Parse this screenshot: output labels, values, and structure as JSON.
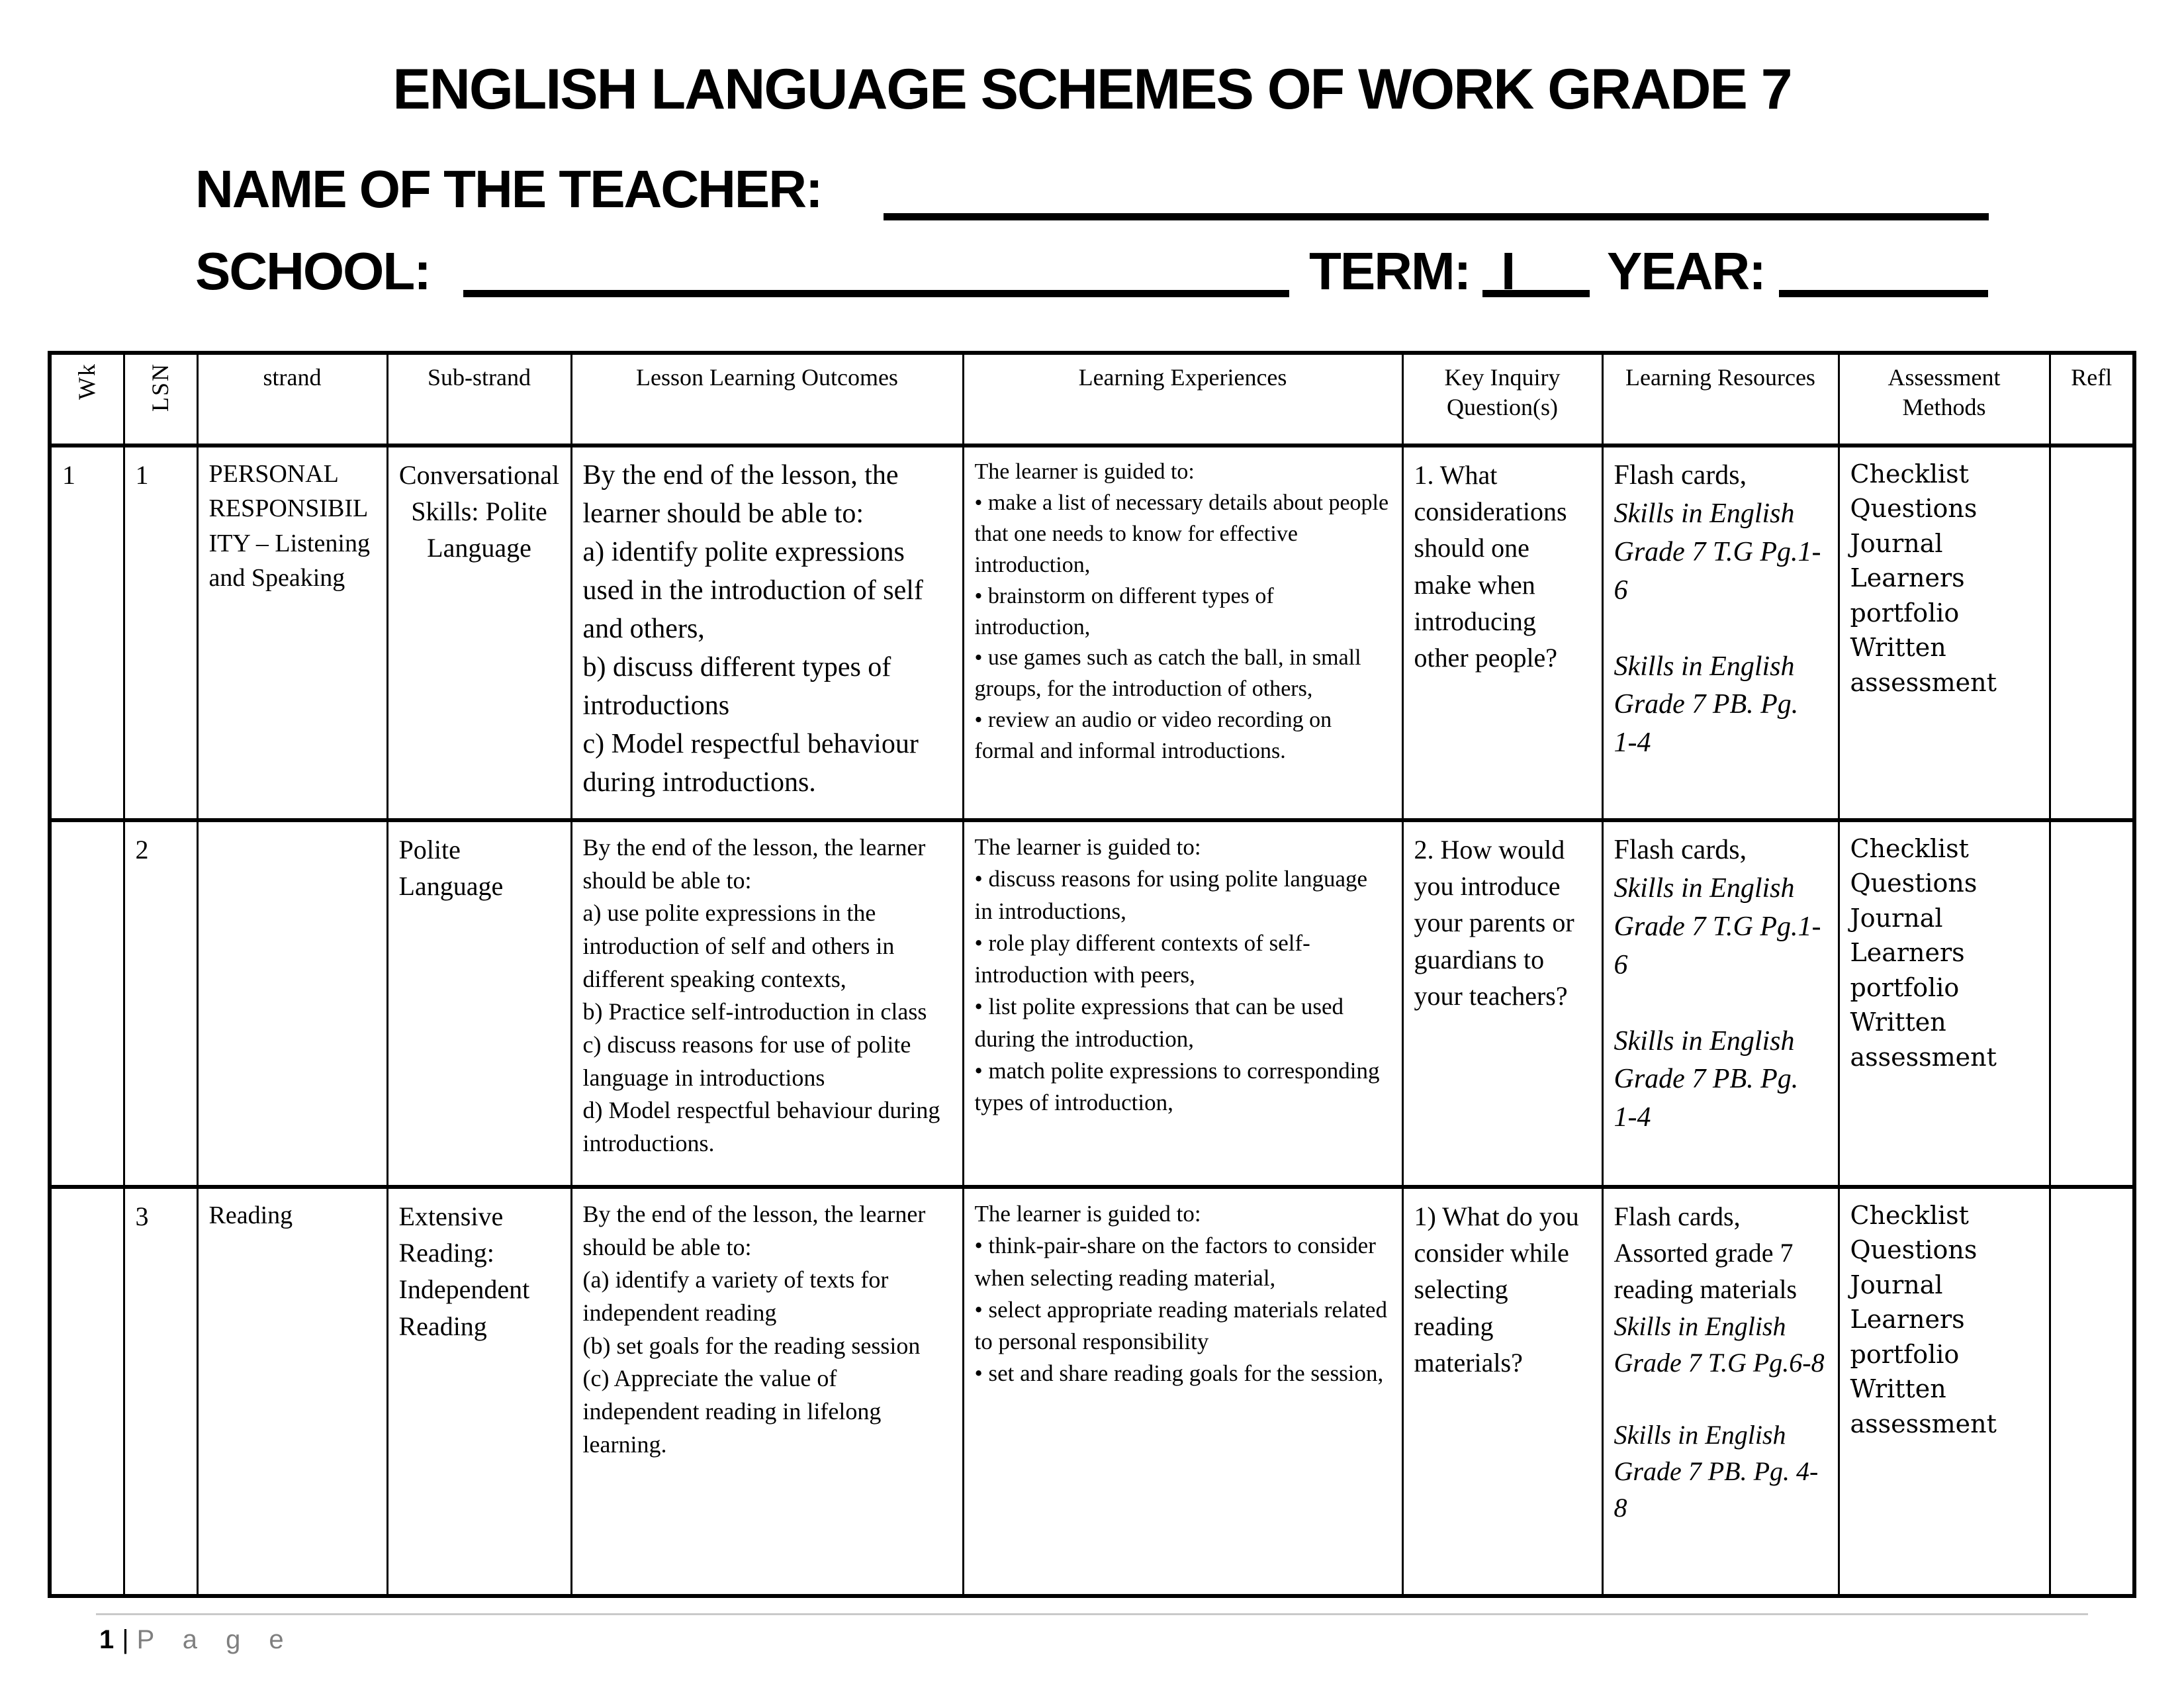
{
  "page": {
    "title": "ENGLISH LANGUAGE SCHEMES OF WORK GRADE 7",
    "teacher_label": "NAME OF THE TEACHER:",
    "school_label": "SCHOOL:",
    "term_label": "TERM:",
    "term_value": "I",
    "year_label": "YEAR:",
    "footer": {
      "page_number": "1",
      "separator": "|",
      "page_word": "P a g e"
    }
  },
  "table": {
    "headers": [
      "Wk",
      "LSN",
      "strand",
      "Sub-strand",
      "Lesson Learning Outcomes",
      "Learning Experiences",
      "Key Inquiry Question(s)",
      "Learning Resources",
      "Assessment Methods",
      "Refl"
    ],
    "rows": [
      {
        "wk": "1",
        "lsn": "1",
        "strand": "PERSONAL RESPONSIBILITY – Listening and Speaking",
        "sub_strand": "Conversational Skills: Polite Language",
        "outcomes": [
          "By the end of the lesson, the learner should be able to:",
          "a) identify polite expressions used in the introduction of self and others,",
          "b) discuss different types of introductions",
          "c) Model respectful behaviour during introductions."
        ],
        "experiences": [
          "The learner is guided to:",
          "• make a list of necessary details about people that one needs to know for effective introduction,",
          "• brainstorm on different types of introduction,",
          "• use games such as catch the ball, in small groups, for the introduction of others,",
          "• review an audio or video recording on formal and informal introductions."
        ],
        "key_inquiry": "1. What considerations should one make when introducing other people?",
        "resources": [
          {
            "text": "Flash cards,",
            "italic": false
          },
          {
            "text": "Skills in English Grade 7 T.G Pg.1-6",
            "italic": true
          },
          {
            "text": "",
            "italic": false
          },
          {
            "text": "Skills in English Grade 7 PB. Pg. 1-4",
            "italic": true
          }
        ],
        "assessment": [
          "Checklist",
          "Questions",
          "Journal",
          "Learners portfolio",
          "Written assessment"
        ],
        "refl": ""
      },
      {
        "wk": "",
        "lsn": "2",
        "strand": "",
        "sub_strand": "Polite Language",
        "outcomes": [
          "By the end of the lesson, the learner should be able to:",
          "a) use polite expressions in the introduction of self and others in different speaking contexts,",
          "b) Practice self-introduction in class",
          "c) discuss reasons for use of polite language in introductions",
          "d) Model respectful behaviour during introductions."
        ],
        "experiences": [
          "The learner is guided to:",
          "• discuss reasons for using polite language in introductions,",
          "• role play different contexts of self-introduction with peers,",
          "• list polite expressions that can be used during the introduction,",
          "• match polite expressions to corresponding types of introduction,"
        ],
        "key_inquiry": "2. How would you introduce your parents or guardians to your teachers?",
        "resources": [
          {
            "text": "Flash cards,",
            "italic": false
          },
          {
            "text": "Skills in English Grade 7 T.G Pg.1-6",
            "italic": true
          },
          {
            "text": "",
            "italic": false
          },
          {
            "text": "Skills in English Grade 7 PB. Pg. 1-4",
            "italic": true
          }
        ],
        "assessment": [
          "Checklist",
          "Questions",
          "Journal",
          "Learners portfolio",
          "Written assessment"
        ],
        "refl": ""
      },
      {
        "wk": "",
        "lsn": "3",
        "strand": "Reading",
        "sub_strand": "Extensive Reading: Independent Reading",
        "outcomes": [
          "By the end of the lesson, the learner should be able to:",
          "(a) identify a variety of texts for independent reading",
          "(b) set goals for the reading session",
          "(c) Appreciate the value of independent reading in lifelong learning."
        ],
        "experiences": [
          "The learner is guided to:",
          "• think-pair-share on the factors to consider when selecting reading material,",
          "• select appropriate reading materials related to personal responsibility",
          "• set and share reading goals for the session,"
        ],
        "key_inquiry": "1) What do you consider while selecting reading materials?",
        "resources": [
          {
            "text": "Flash cards,",
            "italic": false
          },
          {
            "text": "Assorted grade 7 reading materials",
            "italic": false
          },
          {
            "text": "Skills in English Grade 7 T.G Pg.6-8",
            "italic": true
          },
          {
            "text": "",
            "italic": false
          },
          {
            "text": "Skills in English Grade 7 PB. Pg. 4-8",
            "italic": true
          }
        ],
        "assessment": [
          "Checklist",
          "Questions",
          "Journal",
          "Learners portfolio",
          "Written assessment"
        ],
        "refl": ""
      }
    ]
  }
}
